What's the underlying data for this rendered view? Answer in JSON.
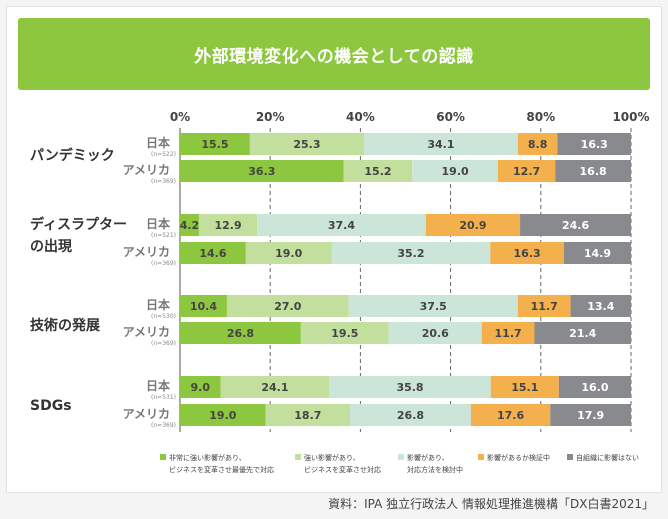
{
  "title": "外部環境変化への機会としての認識",
  "source": "資料：IPA 独立行政法人 情報処理推進機構「DX白書2021」",
  "colors": {
    "banner": "#8dc63f",
    "series": [
      "#8dc63f",
      "#c3df9d",
      "#cbe5d8",
      "#f5b04e",
      "#888a8d"
    ],
    "text_dark": "#444444",
    "axis_tick": "#444444"
  },
  "chart_data": {
    "type": "bar",
    "orientation": "horizontal",
    "stacked": true,
    "xlim": [
      0,
      100
    ],
    "xticks": [
      "0%",
      "20%",
      "40%",
      "60%",
      "80%",
      "100%"
    ],
    "series_names": [
      "非常に強い影響があり、ビジネスを変革させ最優先で対応",
      "強い影響があり、ビジネスを変革させ対応",
      "影響があり、対応方法を検討中",
      "影響があるか検証中",
      "自組織に影響はない"
    ],
    "legend": [
      {
        "line1": "非常に強い影響があり、",
        "line2": "ビジネスを変革させ最優先で対応"
      },
      {
        "line1": "強い影響があり、",
        "line2": "ビジネスを変革させ対応"
      },
      {
        "line1": "影響があり、",
        "line2": "対応方法を検討中"
      },
      {
        "line1": "影響があるか検証中",
        "line2": ""
      },
      {
        "line1": "自組織に影響はない",
        "line2": ""
      }
    ],
    "groups": [
      {
        "label": [
          "パンデミック"
        ],
        "rows": [
          {
            "country": "日本",
            "n": "(n=522)",
            "values": [
              15.5,
              25.3,
              34.1,
              8.8,
              16.3
            ]
          },
          {
            "country": "アメリカ",
            "n": "(n=369)",
            "values": [
              36.3,
              15.2,
              19.0,
              12.7,
              16.8
            ]
          }
        ]
      },
      {
        "label": [
          "ディスラプター",
          "の出現"
        ],
        "rows": [
          {
            "country": "日本",
            "n": "(n=521)",
            "values": [
              4.2,
              12.9,
              37.4,
              20.9,
              24.6
            ]
          },
          {
            "country": "アメリカ",
            "n": "(n=369)",
            "values": [
              14.6,
              19.0,
              35.2,
              16.3,
              14.9
            ]
          }
        ]
      },
      {
        "label": [
          "技術の発展"
        ],
        "rows": [
          {
            "country": "日本",
            "n": "(n=530)",
            "values": [
              10.4,
              27.0,
              37.5,
              11.7,
              13.4
            ]
          },
          {
            "country": "アメリカ",
            "n": "(n=369)",
            "values": [
              26.8,
              19.5,
              20.6,
              11.7,
              21.4
            ]
          }
        ]
      },
      {
        "label": [
          "SDGs"
        ],
        "rows": [
          {
            "country": "日本",
            "n": "(n=531)",
            "values": [
              9.0,
              24.1,
              35.8,
              15.1,
              16.0
            ]
          },
          {
            "country": "アメリカ",
            "n": "(n=369)",
            "values": [
              19.0,
              18.7,
              26.8,
              17.6,
              17.9
            ]
          }
        ]
      }
    ]
  }
}
